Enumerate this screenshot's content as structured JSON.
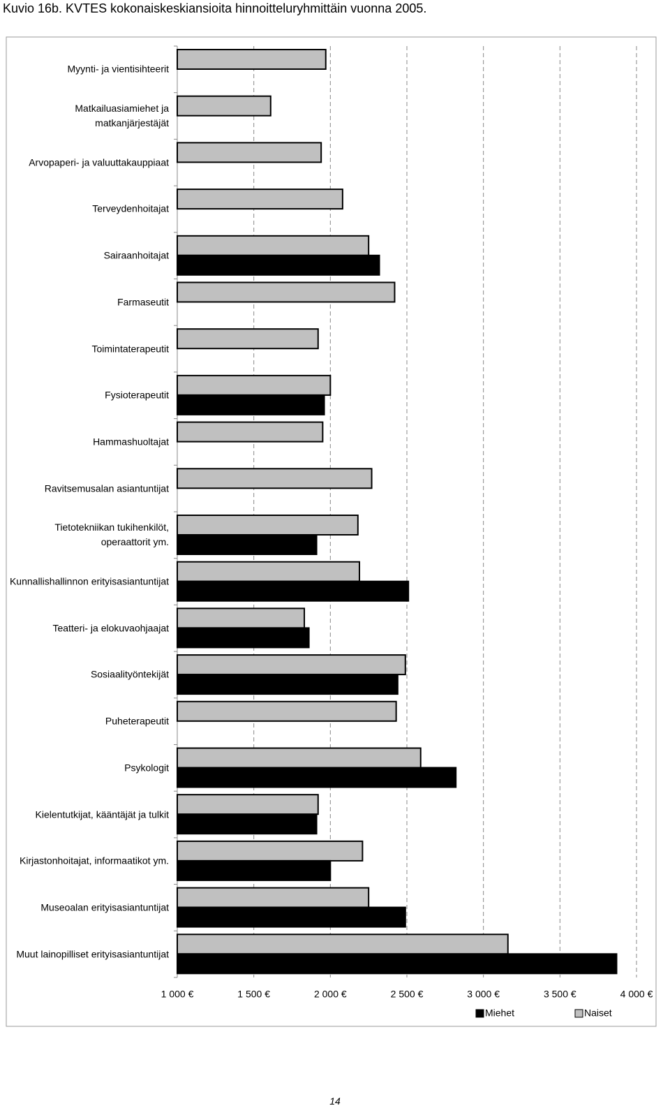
{
  "chart_data": {
    "type": "bar",
    "orientation": "horizontal",
    "title": "Kuvio 16b. KVTES kokonaiskeskiansioita hinnoitteluryhmittäin vuonna 2005.",
    "page_number": "14",
    "categories": [
      "Myynti- ja vientisihteerit",
      "Matkailuasiamiehet ja matkanjärjestäjät",
      "Arvopaperi- ja valuuttakauppiaat",
      "Terveydenhoitajat",
      "Sairaanhoitajat",
      "Farmaseutit",
      "Toimintaterapeutit",
      "Fysioterapeutit",
      "Hammashuoltajat",
      "Ravitsemusalan asiantuntijat",
      "Tietotekniikan tukihenkilöt, operaattorit ym.",
      "Kunnallishallinnon erityisasiantuntijat",
      "Teatteri- ja elokuvaohjaajat",
      "Sosiaalityöntekijät",
      "Puheterapeutit",
      "Psykologit",
      "Kielentutkijat, kääntäjät ja tulkit",
      "Kirjastonhoitajat, informaatikot ym.",
      "Museoalan erityisasiantuntijat",
      "Muut lainopilliset erityisasiantuntijat"
    ],
    "series": [
      {
        "name": "Miehet",
        "color": "#000000",
        "values": [
          null,
          null,
          null,
          null,
          2320,
          null,
          null,
          1960,
          null,
          null,
          1910,
          2510,
          1860,
          2440,
          null,
          2820,
          1910,
          2000,
          2490,
          3870
        ]
      },
      {
        "name": "Naiset",
        "color": "#c0c0c0",
        "values": [
          1970,
          1610,
          1940,
          2080,
          2250,
          2420,
          1920,
          2000,
          1950,
          2270,
          2180,
          2190,
          1830,
          2490,
          2430,
          2590,
          1920,
          2210,
          2250,
          3160
        ]
      }
    ],
    "xlim": [
      1000,
      4000
    ],
    "xticks": [
      {
        "value": 1000,
        "label": "1 000 €"
      },
      {
        "value": 1500,
        "label": "1 500 €"
      },
      {
        "value": 2000,
        "label": "2 000 €"
      },
      {
        "value": 2500,
        "label": "2 500 €"
      },
      {
        "value": 3000,
        "label": "3 000 €"
      },
      {
        "value": 3500,
        "label": "3 500 €"
      },
      {
        "value": 4000,
        "label": "4 000 €"
      }
    ],
    "grid": true,
    "legend": "bottom"
  }
}
